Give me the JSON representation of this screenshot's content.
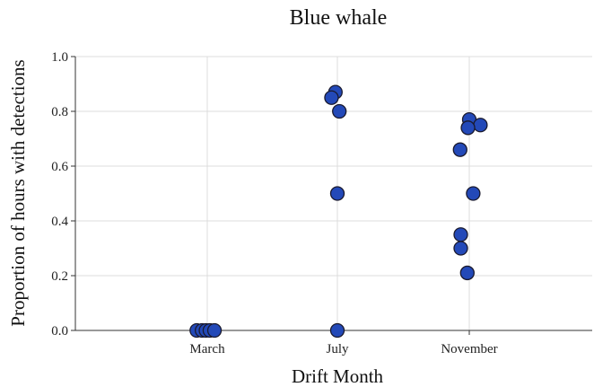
{
  "chart_data": {
    "type": "scatter",
    "title": "Blue whale",
    "xlabel": "Drift Month",
    "ylabel": "Proportion of hours with detections",
    "categories": [
      "March",
      "July",
      "November"
    ],
    "ylim": [
      0,
      1.0
    ],
    "yticks": [
      "0.0",
      "0.2",
      "0.4",
      "0.6",
      "0.8",
      "1.0"
    ],
    "grid": true,
    "marker_color": "#2349b8",
    "marker_edge": "#1a1a2e",
    "series": [
      {
        "category": "March",
        "points": [
          {
            "y": 0.0,
            "jitter": -0.16
          },
          {
            "y": 0.0,
            "jitter": -0.08
          },
          {
            "y": 0.0,
            "jitter": -0.02
          },
          {
            "y": 0.0,
            "jitter": 0.04
          },
          {
            "y": 0.0,
            "jitter": 0.11
          }
        ]
      },
      {
        "category": "July",
        "points": [
          {
            "y": 0.87,
            "jitter": -0.03
          },
          {
            "y": 0.85,
            "jitter": -0.09
          },
          {
            "y": 0.8,
            "jitter": 0.03
          },
          {
            "y": 0.5,
            "jitter": 0.0
          },
          {
            "y": 0.0,
            "jitter": 0.0
          }
        ]
      },
      {
        "category": "November",
        "points": [
          {
            "y": 0.77,
            "jitter": 0.0
          },
          {
            "y": 0.75,
            "jitter": 0.17
          },
          {
            "y": 0.74,
            "jitter": -0.02
          },
          {
            "y": 0.66,
            "jitter": -0.14
          },
          {
            "y": 0.5,
            "jitter": 0.06
          },
          {
            "y": 0.35,
            "jitter": -0.13
          },
          {
            "y": 0.3,
            "jitter": -0.13
          },
          {
            "y": 0.21,
            "jitter": -0.03
          }
        ]
      }
    ]
  }
}
